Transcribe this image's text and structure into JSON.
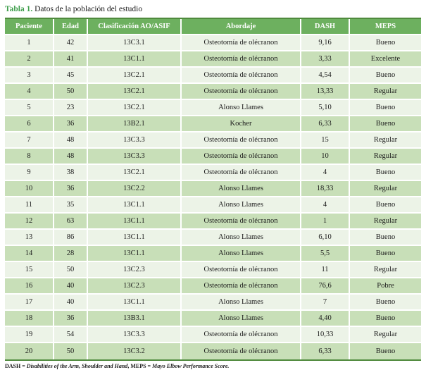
{
  "title": {
    "label": "Tabla 1.",
    "text": " Datos de la población del estudio"
  },
  "table": {
    "columns": [
      "Paciente",
      "Edad",
      "Clasificación AO/ASIF",
      "Abordaje",
      "DASH",
      "MEPS"
    ],
    "rows": [
      [
        "1",
        "42",
        "13C3.1",
        "Osteotomía de olécranon",
        "9,16",
        "Bueno"
      ],
      [
        "2",
        "41",
        "13C1.1",
        "Osteotomía de olécranon",
        "3,33",
        "Excelente"
      ],
      [
        "3",
        "45",
        "13C2.1",
        "Osteotomía de olécranon",
        "4,54",
        "Bueno"
      ],
      [
        "4",
        "50",
        "13C2.1",
        "Osteotomía de olécranon",
        "13,33",
        "Regular"
      ],
      [
        "5",
        "23",
        "13C2.1",
        "Alonso Llames",
        "5,10",
        "Bueno"
      ],
      [
        "6",
        "36",
        "13B2.1",
        "Kocher",
        "6,33",
        "Bueno"
      ],
      [
        "7",
        "48",
        "13C3.3",
        "Osteotomía de olécranon",
        "15",
        "Regular"
      ],
      [
        "8",
        "48",
        "13C3.3",
        "Osteotomía de olécranon",
        "10",
        "Regular"
      ],
      [
        "9",
        "38",
        "13C2.1",
        "Osteotomía de olécranon",
        "4",
        "Bueno"
      ],
      [
        "10",
        "36",
        "13C2.2",
        "Alonso Llames",
        "18,33",
        "Regular"
      ],
      [
        "11",
        "35",
        "13C1.1",
        "Alonso Llames",
        "4",
        "Bueno"
      ],
      [
        "12",
        "63",
        "13C1.1",
        "Osteotomía de olécranon",
        "1",
        "Regular"
      ],
      [
        "13",
        "86",
        "13C1.1",
        "Alonso Llames",
        "6,10",
        "Bueno"
      ],
      [
        "14",
        "28",
        "13C1.1",
        "Alonso Llames",
        "5,5",
        "Bueno"
      ],
      [
        "15",
        "50",
        "13C2.3",
        "Osteotomía de olécranon",
        "11",
        "Regular"
      ],
      [
        "16",
        "40",
        "13C2.3",
        "Osteotomía de olécranon",
        "76,6",
        "Pobre"
      ],
      [
        "17",
        "40",
        "13C1.1",
        "Alonso Llames",
        "7",
        "Bueno"
      ],
      [
        "18",
        "36",
        "13B3.1",
        "Alonso Llames",
        "4,40",
        "Bueno"
      ],
      [
        "19",
        "54",
        "13C3.3",
        "Osteotomía de olécranon",
        "10,33",
        "Regular"
      ],
      [
        "20",
        "50",
        "13C3.2",
        "Osteotomía de olécranon",
        "6,33",
        "Bueno"
      ]
    ]
  },
  "footnote": {
    "segments": [
      {
        "text": "DASH = ",
        "italic": false
      },
      {
        "text": "Disabilities of the Arm, Shoulder and Hand",
        "italic": true
      },
      {
        "text": ", MEPS = ",
        "italic": false
      },
      {
        "text": "Mayo Elbow Performance Score.",
        "italic": true
      }
    ]
  },
  "colors": {
    "header_bg": "#6db05f",
    "row_odd": "#ecf3e7",
    "row_even": "#c8dfb8",
    "outer_border": "#4f8a3d",
    "title_accent": "#3e9e4b"
  }
}
